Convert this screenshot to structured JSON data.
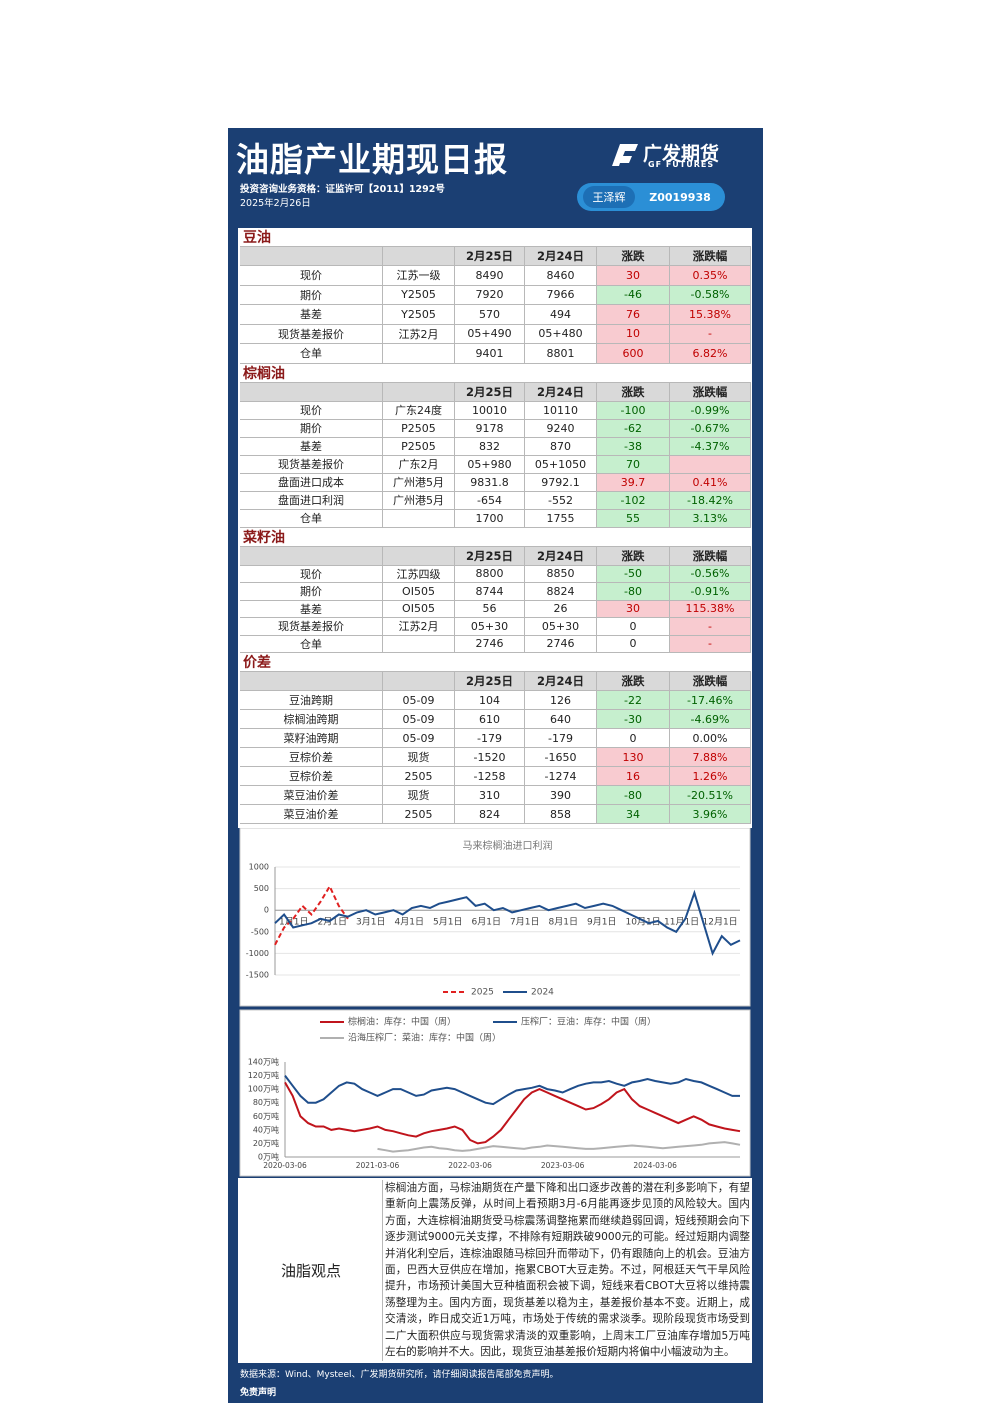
{
  "header": {
    "title": "油脂产业期现日报",
    "logo_cn": "广发期货",
    "logo_en": "GF FUTURES",
    "license": "投资咨询业务资格：证监许可【2011】1292号",
    "date": "2025年2月26日",
    "analyst": "王泽辉",
    "analyst_id": "Z0019938"
  },
  "tables": [
    {
      "title": "豆油",
      "columns": [
        "2月25日",
        "2月24日",
        "涨跌",
        "涨跌幅"
      ],
      "rows": [
        {
          "cells": [
            "现价",
            "江苏一级",
            "8490",
            "8460",
            "30",
            "0.35%"
          ],
          "fills": [
            "#f8cbd0",
            "#f8cbd0"
          ]
        },
        {
          "cells": [
            "期价",
            "Y2505",
            "7920",
            "7966",
            "-46",
            "-0.58%"
          ],
          "fills": [
            "#c6efce",
            "#c6efce"
          ]
        },
        {
          "cells": [
            "基差",
            "Y2505",
            "570",
            "494",
            "76",
            "15.38%"
          ],
          "fills": [
            "#f8cbd0",
            "#f8cbd0"
          ]
        },
        {
          "cells": [
            "现货基差报价",
            "江苏2月",
            "05+490",
            "05+480",
            "10",
            "-"
          ],
          "fills": [
            "#f8cbd0",
            "#f8cbd0"
          ]
        },
        {
          "cells": [
            "仓单",
            null,
            "9401",
            "8801",
            "600",
            "6.82%"
          ],
          "fills": [
            "#f8cbd0",
            "#f8cbd0"
          ]
        }
      ]
    },
    {
      "title": "棕榈油",
      "columns": [
        "2月25日",
        "2月24日",
        "涨跌",
        "涨跌幅"
      ],
      "rows": [
        {
          "cells": [
            "现价",
            "广东24度",
            "10010",
            "10110",
            "-100",
            "-0.99%"
          ],
          "fills": [
            "#c6efce",
            "#c6efce"
          ]
        },
        {
          "cells": [
            "期价",
            "P2505",
            "9178",
            "9240",
            "-62",
            "-0.67%"
          ],
          "fills": [
            "#c6efce",
            "#c6efce"
          ]
        },
        {
          "cells": [
            "基差",
            "P2505",
            "832",
            "870",
            "-38",
            "-4.37%"
          ],
          "fills": [
            "#c6efce",
            "#c6efce"
          ]
        },
        {
          "cells": [
            "现货基差报价",
            "广东2月",
            "05+980",
            "05+1050",
            "70",
            null
          ],
          "fills": [
            "#c6efce",
            "#f8cbd0"
          ]
        },
        {
          "cells": [
            "盘面进口成本",
            "广州港5月",
            "9831.8",
            "9792.1",
            "39.7",
            "0.41%"
          ],
          "fills": [
            "#f8cbd0",
            "#f8cbd0"
          ]
        },
        {
          "cells": [
            "盘面进口利润",
            "广州港5月",
            "-654",
            "-552",
            "-102",
            "-18.42%"
          ],
          "fills": [
            "#c6efce",
            "#c6efce"
          ]
        },
        {
          "cells": [
            "仓单",
            null,
            "1700",
            "1755",
            "55",
            "3.13%"
          ],
          "fills": [
            "#c6efce",
            "#c6efce"
          ]
        }
      ]
    },
    {
      "title": "菜籽油",
      "columns": [
        "2月25日",
        "2月24日",
        "涨跌",
        "涨跌幅"
      ],
      "rows": [
        {
          "cells": [
            "现价",
            "江苏四级",
            "8800",
            "8850",
            "-50",
            "-0.56%"
          ],
          "fills": [
            "#c6efce",
            "#c6efce"
          ]
        },
        {
          "cells": [
            "期价",
            "OI505",
            "8744",
            "8824",
            "-80",
            "-0.91%"
          ],
          "fills": [
            "#c6efce",
            "#c6efce"
          ]
        },
        {
          "cells": [
            "基差",
            "OI505",
            "56",
            "26",
            "30",
            "115.38%"
          ],
          "fills": [
            "#f8cbd0",
            "#f8cbd0"
          ]
        },
        {
          "cells": [
            "现货基差报价",
            "江苏2月",
            "05+30",
            "05+30",
            "0",
            "-"
          ],
          "fills": [
            "#ffffff",
            "#f8cbd0"
          ]
        },
        {
          "cells": [
            "仓单",
            null,
            "2746",
            "2746",
            "0",
            "-"
          ],
          "fills": [
            "#ffffff",
            "#f8cbd0"
          ]
        }
      ]
    },
    {
      "title": "价差",
      "columns": [
        "2月25日",
        "2月24日",
        "涨跌",
        "涨跌幅"
      ],
      "rows": [
        {
          "cells": [
            "豆油跨期",
            "05-09",
            "104",
            "126",
            "-22",
            "-17.46%"
          ],
          "fills": [
            "#c6efce",
            "#c6efce"
          ]
        },
        {
          "cells": [
            "棕榈油跨期",
            "05-09",
            "610",
            "640",
            "-30",
            "-4.69%"
          ],
          "fills": [
            "#c6efce",
            "#c6efce"
          ]
        },
        {
          "cells": [
            "菜籽油跨期",
            "05-09",
            "-179",
            "-179",
            "0",
            "0.00%"
          ],
          "fills": [
            "#ffffff",
            "#ffffff"
          ]
        },
        {
          "cells": [
            "豆棕价差",
            "现货",
            "-1520",
            "-1650",
            "130",
            "7.88%"
          ],
          "fills": [
            "#f8cbd0",
            "#f8cbd0"
          ]
        },
        {
          "cells": [
            "豆棕价差",
            "2505",
            "-1258",
            "-1274",
            "16",
            "1.26%"
          ],
          "fills": [
            "#f8cbd0",
            "#f8cbd0"
          ]
        },
        {
          "cells": [
            "菜豆油价差",
            "现货",
            "310",
            "390",
            "-80",
            "-20.51%"
          ],
          "fills": [
            "#c6efce",
            "#c6efce"
          ]
        },
        {
          "cells": [
            "菜豆油价差",
            "2505",
            "824",
            "858",
            "34",
            "3.96%"
          ],
          "fills": [
            "#c6efce",
            "#c6efce"
          ]
        }
      ]
    }
  ],
  "charts": [
    {
      "type": "line",
      "title": "马来棕榈油进口利润",
      "xlabels": [
        "1月1日",
        "2月1日",
        "3月1日",
        "4月1日",
        "5月1日",
        "6月1日",
        "7月1日",
        "8月1日",
        "9月1日",
        "10月1日",
        "11月1日",
        "12月1日"
      ],
      "ylim": [
        -1500,
        1000
      ],
      "yticks": [
        1000,
        500,
        0,
        -500,
        -1000,
        -1500
      ],
      "grid": true,
      "series": [
        {
          "name": "2025",
          "color": "#e02020",
          "dash": true,
          "values": [
            -800,
            -400,
            -200,
            100,
            -100,
            200,
            550,
            100,
            -200,
            null,
            null,
            null,
            null,
            null,
            null,
            null,
            null,
            null,
            null,
            null,
            null,
            null,
            null,
            null,
            null,
            null,
            null,
            null,
            null,
            null,
            null,
            null,
            null,
            null,
            null,
            null,
            null,
            null,
            null,
            null,
            null,
            null,
            null,
            null,
            null,
            null,
            null,
            null,
            null,
            null,
            null,
            null
          ]
        },
        {
          "name": "2024",
          "color": "#1f4e8c",
          "dash": false,
          "values": [
            -300,
            -100,
            -400,
            -350,
            -300,
            -200,
            -250,
            -100,
            -150,
            -50,
            0,
            -100,
            -50,
            0,
            -100,
            50,
            100,
            50,
            150,
            200,
            250,
            300,
            100,
            150,
            0,
            50,
            -50,
            0,
            50,
            100,
            0,
            50,
            100,
            150,
            50,
            100,
            150,
            100,
            0,
            -100,
            -200,
            -300,
            -250,
            -400,
            -500,
            -200,
            400,
            -300,
            -1000,
            -600,
            -800,
            -700
          ]
        }
      ]
    },
    {
      "type": "line",
      "xlabels": [
        "2020-03-06",
        "2021-03-06",
        "2022-03-06",
        "2023-03-06",
        "2024-03-06"
      ],
      "ylim": [
        0,
        140
      ],
      "yticks": [
        {
          "value": 140,
          "label": "140万吨"
        },
        {
          "value": 120,
          "label": "120万吨"
        },
        {
          "value": 100,
          "label": "100万吨"
        },
        {
          "value": 80,
          "label": "80万吨"
        },
        {
          "value": 60,
          "label": "60万吨"
        },
        {
          "value": 40,
          "label": "40万吨"
        },
        {
          "value": 20,
          "label": "20万吨"
        },
        {
          "value": 0,
          "label": "0万吨"
        }
      ],
      "series": [
        {
          "name": "棕榈油：库存：中国（周）",
          "color": "#c0141c",
          "values": [
            110,
            90,
            60,
            50,
            45,
            45,
            40,
            42,
            40,
            38,
            40,
            42,
            45,
            40,
            38,
            35,
            32,
            30,
            35,
            38,
            40,
            42,
            45,
            40,
            25,
            20,
            22,
            30,
            40,
            55,
            70,
            85,
            95,
            100,
            95,
            90,
            85,
            80,
            75,
            70,
            72,
            78,
            85,
            95,
            100,
            85,
            75,
            70,
            65,
            60,
            55,
            50,
            55,
            60,
            55,
            48,
            45,
            42,
            40,
            38
          ]
        },
        {
          "name": "压榨厂：豆油：库存：中国（周）",
          "color": "#1f4e8c",
          "values": [
            120,
            105,
            90,
            80,
            80,
            85,
            95,
            105,
            110,
            108,
            100,
            95,
            90,
            95,
            100,
            100,
            95,
            90,
            92,
            98,
            100,
            102,
            100,
            95,
            90,
            85,
            80,
            78,
            85,
            92,
            98,
            100,
            102,
            105,
            100,
            98,
            95,
            100,
            105,
            108,
            110,
            110,
            112,
            108,
            105,
            110,
            112,
            115,
            112,
            110,
            108,
            110,
            115,
            112,
            110,
            105,
            100,
            95,
            90,
            90
          ]
        },
        {
          "name": "沿海压榨厂：菜油：库存：中国（周）",
          "color": "#b0b0b0",
          "values": [
            null,
            null,
            null,
            null,
            null,
            null,
            null,
            null,
            null,
            null,
            null,
            null,
            12,
            10,
            8,
            9,
            10,
            12,
            14,
            15,
            13,
            12,
            10,
            9,
            10,
            12,
            14,
            16,
            15,
            14,
            13,
            12,
            14,
            15,
            17,
            16,
            15,
            14,
            13,
            12,
            12,
            13,
            14,
            15,
            16,
            17,
            16,
            15,
            14,
            13,
            14,
            15,
            16,
            17,
            18,
            20,
            21,
            22,
            20,
            18
          ]
        }
      ]
    }
  ],
  "view": {
    "label": "油脂观点",
    "text": "棕榈油方面，马棕油期货在产量下降和出口逐步改善的潜在利多影响下，有望重新向上震荡反弹，从时间上看预期3月-6月能再逐步见顶的风险较大。国内方面，大连棕榈油期货受马棕震荡调整拖累而继续趋弱回调，短线预期会向下逐步测试9000元关支撑，不排除有短期跌破9000元的可能。经过短期内调整并消化利空后，连棕油跟随马棕回升而带动下，仍有跟随向上的机会。豆油方面，巴西大豆供应在增加，拖累CBOT大豆走势。不过，阿根廷天气干旱风险提升，市场预计美国大豆种植面积会被下调，短线来看CBOT大豆将以维持震荡整理为主。国内方面，现货基差以稳为主，基差报价基本不变。近期上，成交清淡，昨日成交近1万吨，市场处于传统的需求淡季。现阶段现货市场受到二广大面积供应与现货需求清淡的双重影响，上周末工厂豆油库存增加5万吨左右的影响并不大。因此，现货豆油基差报价短期内将偏中小幅波动为主。"
  },
  "footer": {
    "source": "数据来源：Wind、Mysteel、广发期货研究所，请仔细阅读报告尾部免责声明。",
    "disclaimer": "免责声明"
  }
}
